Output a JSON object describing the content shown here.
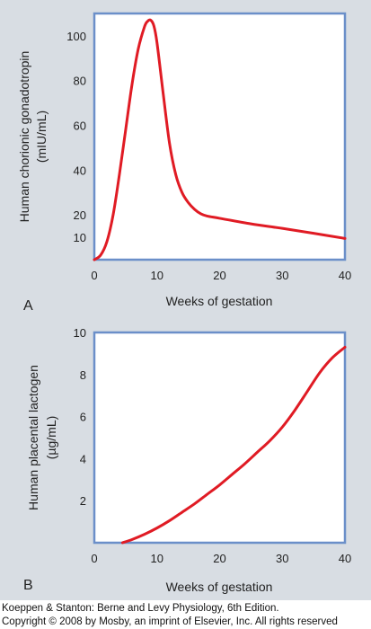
{
  "colors": {
    "background": "#d8dde3",
    "plot_area": "#ffffff",
    "axis_frame": "#6b8fc9",
    "curve": "#e01b24",
    "text": "#222222"
  },
  "chart_data": [
    {
      "panel": "A",
      "type": "line",
      "xlabel": "Weeks of gestation",
      "ylabel_lines": [
        "Human chorionic gonadotropin",
        "(mIU/mL)"
      ],
      "xlim": [
        0,
        40
      ],
      "ylim": [
        0,
        110
      ],
      "x_ticks": [
        0,
        10,
        20,
        30,
        40
      ],
      "y_ticks": [
        10,
        20,
        40,
        60,
        80,
        100
      ],
      "grid": false,
      "series": [
        {
          "x": [
            0,
            1,
            2,
            3,
            4,
            5,
            6,
            7,
            8,
            8.5,
            9,
            9.5,
            10,
            11,
            12,
            13,
            14,
            15,
            16,
            17,
            18,
            20,
            25,
            30,
            35,
            40
          ],
          "y": [
            0,
            2,
            8,
            20,
            38,
            58,
            78,
            94,
            104,
            106.5,
            107,
            104.5,
            97,
            74,
            52,
            38,
            30,
            25.5,
            22.5,
            20.5,
            19.5,
            18.5,
            16,
            14,
            11.8,
            9.5
          ]
        }
      ]
    },
    {
      "panel": "B",
      "type": "line",
      "xlabel": "Weeks of gestation",
      "ylabel_lines": [
        "Human placental lactogen",
        "(µg/mL)"
      ],
      "xlim": [
        0,
        40
      ],
      "ylim": [
        0,
        10
      ],
      "x_ticks": [
        0,
        10,
        20,
        30,
        40
      ],
      "y_ticks": [
        2,
        4,
        6,
        8,
        10
      ],
      "grid": false,
      "series": [
        {
          "x": [
            4.5,
            6,
            8,
            10,
            12,
            14,
            16,
            18,
            20,
            22,
            24,
            26,
            28,
            30,
            32,
            34,
            36,
            38,
            40
          ],
          "y": [
            0,
            0.15,
            0.4,
            0.7,
            1.05,
            1.45,
            1.85,
            2.3,
            2.75,
            3.25,
            3.75,
            4.3,
            4.85,
            5.5,
            6.3,
            7.2,
            8.1,
            8.8,
            9.3
          ]
        }
      ]
    }
  ],
  "credit": {
    "line1": "Koeppen & Stanton: Berne and Levy Physiology, 6th Edition.",
    "line2": "Copyright © 2008 by Mosby, an imprint of Elsevier, Inc. All rights reserved"
  }
}
